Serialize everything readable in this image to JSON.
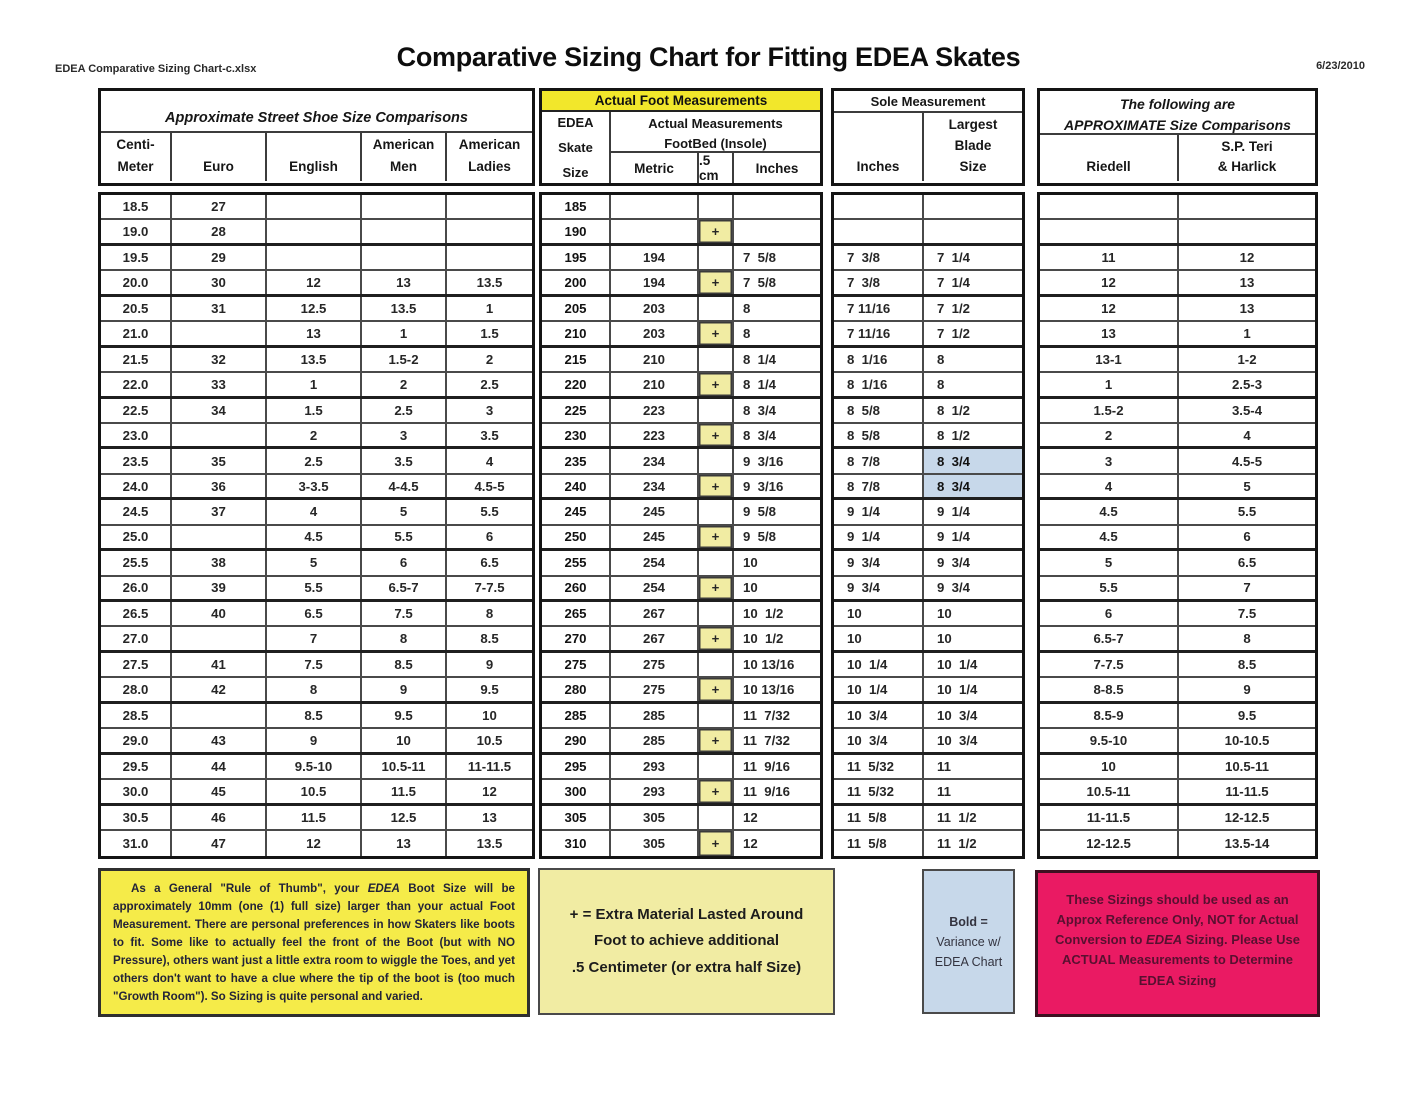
{
  "page": {
    "file_label": "EDEA Comparative Sizing Chart-c.xlsx",
    "title": "Comparative Sizing Chart for Fitting EDEA Skates",
    "date": "6/23/2010"
  },
  "colors": {
    "banner_yellow": "#f2e72b",
    "plus_yellow": "#f1eca3",
    "variance_blue": "#c7d8ea",
    "note_yellow": "#f5eb49",
    "note_pale_yellow": "#f1eca3",
    "note_blue": "#c7d8ea",
    "note_pink": "#ea1a63"
  },
  "street_shoe_table": {
    "title": "Approximate Street Shoe Size Comparisons",
    "col_centimeter": [
      "Centi-",
      "Meter"
    ],
    "col_euro": "Euro",
    "col_english": "English",
    "col_american_men": [
      "American",
      "Men"
    ],
    "col_american_ladies": [
      "American",
      "Ladies"
    ]
  },
  "foot_table": {
    "banner": "Actual Foot Measurements",
    "col_skate": [
      "EDEA",
      "Skate",
      "Size"
    ],
    "group_label": [
      "Actual Measurements",
      "FootBed (Insole)"
    ],
    "col_metric": "Metric",
    "col_half_cm": ".5 cm",
    "col_inches": "Inches"
  },
  "sole_table": {
    "title": "Sole Measurement",
    "col_inches": "Inches",
    "col_blade": [
      "Largest",
      "Blade",
      "Size"
    ]
  },
  "comparison_table": {
    "title": [
      "The following are",
      "APPROXIMATE Size Comparisons"
    ],
    "col_riedell": "Riedell",
    "col_sp_teri": [
      "S.P. Teri",
      "& Harlick"
    ]
  },
  "body": {
    "cm": [
      "18.5",
      "19.0",
      "19.5",
      "20.0",
      "20.5",
      "21.0",
      "21.5",
      "22.0",
      "22.5",
      "23.0",
      "23.5",
      "24.0",
      "24.5",
      "25.0",
      "25.5",
      "26.0",
      "26.5",
      "27.0",
      "27.5",
      "28.0",
      "28.5",
      "29.0",
      "29.5",
      "30.0",
      "30.5",
      "31.0"
    ],
    "euro": [
      "27",
      "28",
      "29",
      "30",
      "31",
      "",
      "32",
      "33",
      "34",
      "",
      "35",
      "36",
      "37",
      "",
      "38",
      "39",
      "40",
      "",
      "41",
      "42",
      "",
      "43",
      "44",
      "45",
      "46",
      "47"
    ],
    "english": [
      "",
      "",
      "",
      "12",
      "12.5",
      "13",
      "13.5",
      "1",
      "1.5",
      "2",
      "2.5",
      "3-3.5",
      "4",
      "4.5",
      "5",
      "5.5",
      "6.5",
      "7",
      "7.5",
      "8",
      "8.5",
      "9",
      "9.5-10",
      "10.5",
      "11.5",
      "12"
    ],
    "american_men": [
      "",
      "",
      "",
      "13",
      "13.5",
      "1",
      "1.5-2",
      "2",
      "2.5",
      "3",
      "3.5",
      "4-4.5",
      "5",
      "5.5",
      "6",
      "6.5-7",
      "7.5",
      "8",
      "8.5",
      "9",
      "9.5",
      "10",
      "10.5-11",
      "11.5",
      "12.5",
      "13"
    ],
    "american_ladies": [
      "",
      "",
      "",
      "13.5",
      "1",
      "1.5",
      "2",
      "2.5",
      "3",
      "3.5",
      "4",
      "4.5-5",
      "5.5",
      "6",
      "6.5",
      "7-7.5",
      "8",
      "8.5",
      "9",
      "9.5",
      "10",
      "10.5",
      "11-11.5",
      "12",
      "13",
      "13.5"
    ],
    "edea_size": [
      "185",
      "190",
      "195",
      "200",
      "205",
      "210",
      "215",
      "220",
      "225",
      "230",
      "235",
      "240",
      "245",
      "250",
      "255",
      "260",
      "265",
      "270",
      "275",
      "280",
      "285",
      "290",
      "295",
      "300",
      "305",
      "310"
    ],
    "metric": [
      "",
      "",
      "194",
      "194",
      "203",
      "203",
      "210",
      "210",
      "223",
      "223",
      "234",
      "234",
      "245",
      "245",
      "254",
      "254",
      "267",
      "267",
      "275",
      "275",
      "285",
      "285",
      "293",
      "293",
      "305",
      "305"
    ],
    "plus": [
      "",
      "+",
      "",
      "+",
      "",
      "+",
      "",
      "+",
      "",
      "+",
      "",
      "+",
      "",
      "+",
      "",
      "+",
      "",
      "+",
      "",
      "+",
      "",
      "+",
      "",
      "+",
      "",
      "+"
    ],
    "foot_inches": [
      "",
      "",
      "7  5/8",
      "7  5/8",
      "8",
      "8",
      "8  1/4",
      "8  1/4",
      "8  3/4",
      "8  3/4",
      "9  3/16",
      "9  3/16",
      "9  5/8",
      "9  5/8",
      "10",
      "10",
      "10  1/2",
      "10  1/2",
      "10 13/16",
      "10 13/16",
      "11  7/32",
      "11  7/32",
      "11  9/16",
      "11  9/16",
      "12",
      "12"
    ],
    "sole_inches": [
      "",
      "",
      "7  3/8",
      "7  3/8",
      "7 11/16",
      "7 11/16",
      "8  1/16",
      "8  1/16",
      "8  5/8",
      "8  5/8",
      "8  7/8",
      "8  7/8",
      "9  1/4",
      "9  1/4",
      "9  3/4",
      "9  3/4",
      "10",
      "10",
      "10  1/4",
      "10  1/4",
      "10  3/4",
      "10  3/4",
      "11  5/32",
      "11  5/32",
      "11  5/8",
      "11  5/8"
    ],
    "blade_size": [
      "",
      "",
      "7  1/4",
      "7  1/4",
      "7  1/2",
      "7  1/2",
      "8",
      "8",
      "8  1/2",
      "8  1/2",
      "8  3/4",
      "8  3/4",
      "9  1/4",
      "9  1/4",
      "9  3/4",
      "9  3/4",
      "10",
      "10",
      "10  1/4",
      "10  1/4",
      "10  3/4",
      "10  3/4",
      "11",
      "11",
      "11  1/2",
      "11  1/2"
    ],
    "blade_variance_rows": [
      10,
      11
    ],
    "riedell": [
      "",
      "",
      "11",
      "12",
      "12",
      "13",
      "13-1",
      "1",
      "1.5-2",
      "2",
      "3",
      "4",
      "4.5",
      "4.5",
      "5",
      "5.5",
      "6",
      "6.5-7",
      "7-7.5",
      "8-8.5",
      "8.5-9",
      "9.5-10",
      "10",
      "10.5-11",
      "11-11.5",
      "12-12.5"
    ],
    "sp_teri": [
      "",
      "",
      "12",
      "13",
      "13",
      "1",
      "1-2",
      "2.5-3",
      "3.5-4",
      "4",
      "4.5-5",
      "5",
      "5.5",
      "6",
      "6.5",
      "7",
      "7.5",
      "8",
      "8.5",
      "9",
      "9.5",
      "10-10.5",
      "10.5-11",
      "11-11.5",
      "12-12.5",
      "13.5-14"
    ]
  },
  "notes": {
    "rule_of_thumb_segments": [
      {
        "t": "As a General \"Rule of Thumb\", your "
      },
      {
        "t": "EDEA",
        "b": 1,
        "i": 1
      },
      {
        "t": " Boot Size will be approximately 10mm (one (1) full size) larger than your actual Foot Measurement.  There are personal preferences in how Skaters like boots to fit.  Some like to actually feel the front of the Boot (but with NO Pressure), others want just a little extra room to wiggle the Toes, and yet others don't want to have a clue where the tip of the boot is (too much \"Growth Room\").  So Sizing is quite personal and varied."
      }
    ],
    "plus_note_lines": [
      "+ = Extra Material Lasted Around",
      "Foot to achieve additional",
      ".5 Centimeter (or extra half Size)"
    ],
    "bold_note_lines": [
      [
        {
          "t": "Bold =",
          "b": 1
        }
      ],
      [
        {
          "t": "Variance w/"
        }
      ],
      [
        {
          "t": "EDEA Chart"
        }
      ]
    ],
    "approx_reference_lines": [
      [
        {
          "t": "These Sizings should be used as an"
        }
      ],
      [
        {
          "t": "Approx Reference Only, "
        },
        {
          "t": "NOT",
          "b": 1
        },
        {
          "t": " for Actual"
        }
      ],
      [
        {
          "t": "Conversion to "
        },
        {
          "t": "EDEA",
          "b": 1,
          "i": 1
        },
        {
          "t": "  Sizing.  Please Use"
        }
      ],
      [
        {
          "t": "ACTUAL Measurements to Determine"
        }
      ],
      [
        {
          "t": "EDEA Sizing"
        }
      ]
    ]
  }
}
